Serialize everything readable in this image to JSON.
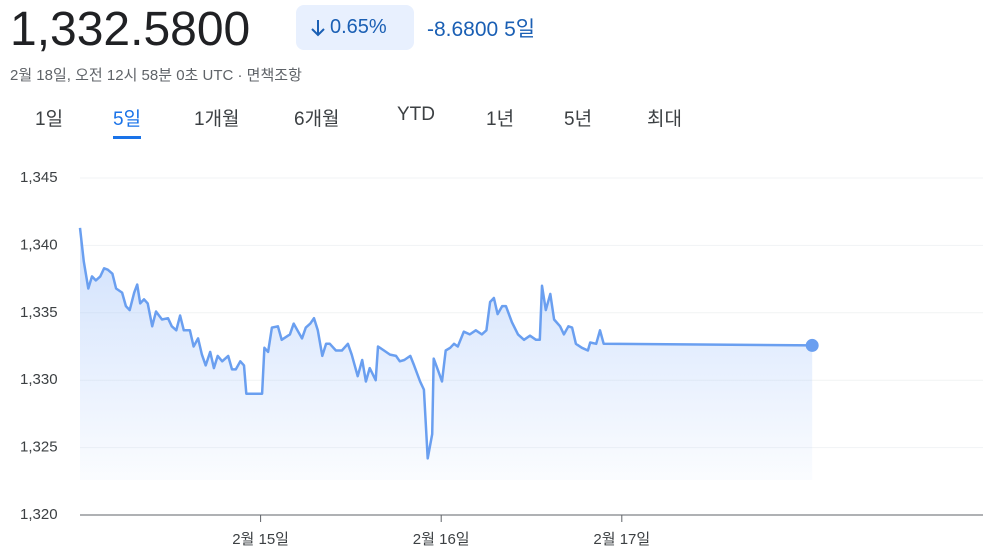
{
  "header": {
    "price": "1,332.5800",
    "change_percent": "0.65%",
    "change": "-8.6800",
    "period": "5일",
    "timestamp": "2월 18일, 오전 12시 58분 0초 UTC · 면책조항"
  },
  "tabs": [
    "1일",
    "5일",
    "1개월",
    "6개월",
    "YTD",
    "1년",
    "5년",
    "최대"
  ],
  "selected_tab": 1,
  "chart_data": {
    "type": "line",
    "x": [
      0,
      0.5,
      1.1,
      1.6,
      2.1,
      2.7,
      3.2,
      3.7,
      4.3,
      4.8,
      5.6,
      6.1,
      6.6,
      7.2,
      7.6,
      8.0,
      8.5,
      9.0,
      9.6,
      10.1,
      10.9,
      11.7,
      12.2,
      12.8,
      13.3,
      13.8,
      14.6,
      15.1,
      15.7,
      16.2,
      16.7,
      17.3,
      17.8,
      18.3,
      18.9,
      19.7,
      20.2,
      20.7,
      21.3,
      21.8,
      22.1,
      24.2,
      24.5,
      25.0,
      25.5,
      26.3,
      26.8,
      27.9,
      28.4,
      29.0,
      29.5,
      30.0,
      30.6,
      31.1,
      31.6,
      32.2,
      32.7,
      33.2,
      34.0,
      34.8,
      35.6,
      36.1,
      36.9,
      37.5,
      38.0,
      38.5,
      39.3,
      39.6,
      40.4,
      41.2,
      42.0,
      42.5,
      43.1,
      43.9,
      44.4,
      45.2,
      45.7,
      46.2,
      46.8,
      47.0,
      47.6,
      48.1,
      48.6,
      49.2,
      49.7,
      50.2,
      51.0,
      51.8,
      52.6,
      53.4,
      54.0,
      54.5,
      55.0,
      55.5,
      56.1,
      56.6,
      57.4,
      58.2,
      59.0,
      59.8,
      60.6,
      61.1,
      61.4,
      61.9,
      62.5,
      63.0,
      63.8,
      64.3,
      64.9,
      65.4,
      65.9,
      66.7,
      67.5,
      67.8,
      68.6,
      69.1,
      69.6,
      97.3
    ],
    "series": [
      {
        "color": "#6a9ff0",
        "values": [
          1341.3,
          1338.8,
          1336.8,
          1337.7,
          1337.4,
          1337.7,
          1338.3,
          1338.2,
          1337.9,
          1336.8,
          1336.5,
          1335.5,
          1335.2,
          1336.5,
          1337.1,
          1335.7,
          1336.0,
          1335.7,
          1334.0,
          1335.1,
          1334.5,
          1334.6,
          1334.0,
          1333.7,
          1334.8,
          1333.7,
          1333.7,
          1332.5,
          1333.1,
          1331.9,
          1331.1,
          1332.1,
          1330.9,
          1331.8,
          1331.4,
          1331.8,
          1330.8,
          1330.8,
          1331.4,
          1331.1,
          1329.0,
          1329.0,
          1332.4,
          1332.1,
          1333.9,
          1334.0,
          1333.0,
          1333.4,
          1334.2,
          1333.6,
          1333.1,
          1333.9,
          1334.2,
          1334.6,
          1333.7,
          1331.8,
          1332.7,
          1332.7,
          1332.2,
          1332.2,
          1332.7,
          1331.9,
          1330.3,
          1331.5,
          1329.9,
          1330.9,
          1330.0,
          1332.5,
          1332.2,
          1331.9,
          1331.8,
          1331.4,
          1331.5,
          1331.8,
          1331.1,
          1329.9,
          1329.3,
          1324.2,
          1326.0,
          1331.6,
          1330.7,
          1329.9,
          1332.2,
          1332.4,
          1332.7,
          1332.5,
          1333.6,
          1333.4,
          1333.7,
          1333.4,
          1333.7,
          1335.8,
          1336.1,
          1334.9,
          1335.5,
          1335.5,
          1334.3,
          1333.4,
          1333.0,
          1333.3,
          1333.0,
          1333.0,
          1337.0,
          1335.2,
          1336.4,
          1334.5,
          1334.0,
          1333.4,
          1334.0,
          1333.9,
          1332.7,
          1332.4,
          1332.2,
          1332.8,
          1332.7,
          1333.7,
          1332.7,
          1332.58
        ]
      }
    ],
    "xlim": [
      0,
      120
    ],
    "xticks": [
      {
        "value": 24,
        "label": "2월 15일"
      },
      {
        "value": 48,
        "label": "2월 16일"
      },
      {
        "value": 72,
        "label": "2월 17일"
      }
    ],
    "ylim": [
      1320,
      1345
    ],
    "yticks": [
      {
        "value": 1320,
        "label": "1,320"
      },
      {
        "value": 1325,
        "label": "1,325"
      },
      {
        "value": 1330,
        "label": "1,330"
      },
      {
        "value": 1335,
        "label": "1,335"
      },
      {
        "value": 1340,
        "label": "1,340"
      },
      {
        "value": 1345,
        "label": "1,345"
      }
    ],
    "grid": true
  }
}
